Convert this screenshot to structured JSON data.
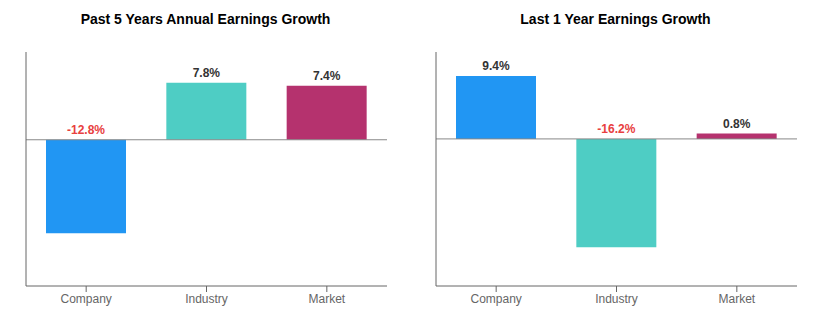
{
  "chart_data": [
    {
      "type": "bar",
      "title": "Past 5 Years Annual Earnings Growth",
      "categories": [
        "Company",
        "Industry",
        "Market"
      ],
      "values": [
        -12.8,
        7.8,
        7.4
      ],
      "value_labels": [
        "-12.8%",
        "7.8%",
        "7.4%"
      ],
      "colors": [
        "#2196f3",
        "#4ecdc4",
        "#b5326e"
      ],
      "ylim": [
        -20,
        12
      ],
      "data_labels": true,
      "tick_labels": "x"
    },
    {
      "type": "bar",
      "title": "Last 1 Year Earnings Growth",
      "categories": [
        "Company",
        "Industry",
        "Market"
      ],
      "values": [
        9.4,
        -16.2,
        0.8
      ],
      "value_labels": [
        "9.4%",
        "-16.2%",
        "0.8%"
      ],
      "colors": [
        "#2196f3",
        "#4ecdc4",
        "#b5326e"
      ],
      "ylim": [
        -22,
        13
      ],
      "data_labels": true,
      "tick_labels": "x"
    }
  ]
}
